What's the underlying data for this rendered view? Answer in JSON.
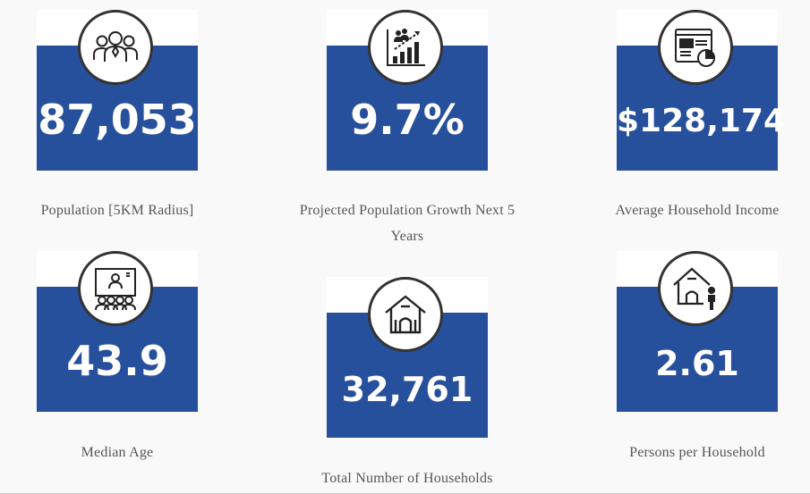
{
  "stats": [
    {
      "value": "87,053",
      "label": "Population [5KM Radius]",
      "icon": "people-group-icon"
    },
    {
      "value": "9.7%",
      "label": "Projected Population Growth Next 5 Years",
      "icon": "growth-chart-icon"
    },
    {
      "value": "$128,174",
      "label": "Average Household Income",
      "icon": "income-report-icon"
    },
    {
      "value": "43.9",
      "label": "Median Age",
      "icon": "audience-presentation-icon"
    },
    {
      "value": "32,761",
      "label": "Total Number of Households",
      "icon": "house-icon"
    },
    {
      "value": "2.61",
      "label": "Persons per Household",
      "icon": "house-person-icon"
    }
  ],
  "colors": {
    "card_blue": "#27509c",
    "label_text": "#555555",
    "background": "#f9f9f9"
  }
}
